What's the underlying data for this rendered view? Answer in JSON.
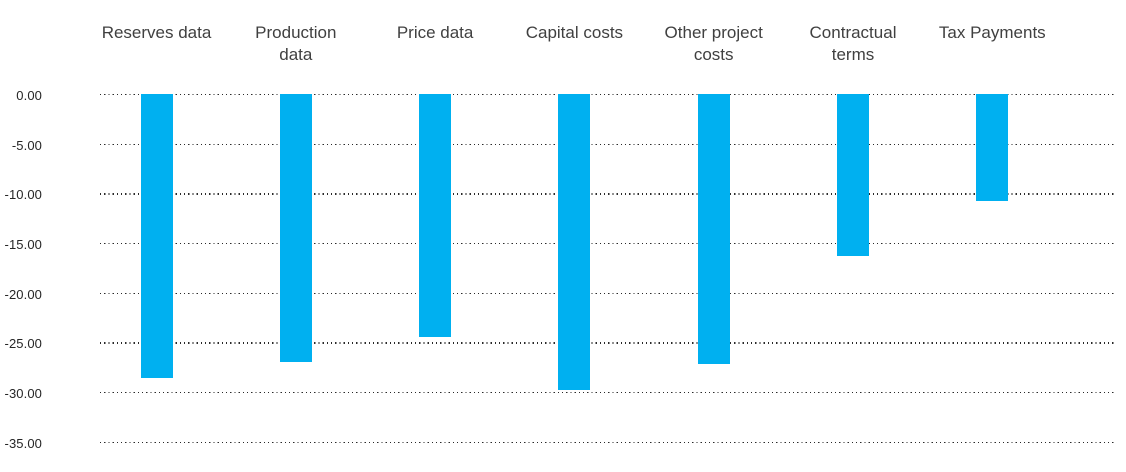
{
  "chart_data": {
    "type": "bar",
    "title": "",
    "xlabel": "",
    "ylabel": "",
    "categories": [
      "Reserves data",
      "Production data",
      "Price data",
      "Capital costs",
      "Other project costs",
      "Contractual terms",
      "Tax Payments"
    ],
    "categories_wrapped": [
      "Reserves data",
      "Production\ndata",
      "Price data",
      "Capital costs",
      "Other project\ncosts",
      "Contractual\nterms",
      "Tax Payments"
    ],
    "values": [
      -28.6,
      -27.0,
      -24.5,
      -29.8,
      -27.2,
      -16.3,
      -10.8
    ],
    "ylim": [
      -35,
      0
    ],
    "yticks": [
      0,
      -5,
      -10,
      -15,
      -20,
      -25,
      -30,
      -35
    ],
    "ytick_labels": [
      "0.00",
      "-5.00",
      "-10.00",
      "-15.00",
      "-20.00",
      "-25.00",
      "-30.00",
      "-35.00"
    ],
    "bar_color": "#00b0f0",
    "grid": "horizontal-dotted",
    "gridline_color": "#2a2a2a",
    "category_label_color": "#404040",
    "ytick_label_color": "#262626",
    "background_color": "#ffffff",
    "legend_position": "none",
    "category_axis_position": "top"
  }
}
